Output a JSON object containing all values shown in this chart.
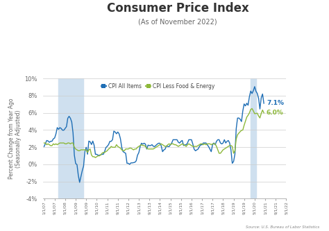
{
  "title": "Consumer Price Index",
  "subtitle": "(As of November 2022)",
  "ylabel": "Percent Change from Year Ago\n(Seasonally Adjusted)",
  "source": "Source: U.S. Bureau of Labor Statistics",
  "ylim": [
    -4,
    10
  ],
  "yticks": [
    -4,
    -2,
    0,
    2,
    4,
    6,
    8,
    10
  ],
  "ytick_labels": [
    "-4%",
    "-2%",
    "0%",
    "2%",
    "4%",
    "6%",
    "8%",
    "10%"
  ],
  "color_all": "#1e6eb5",
  "color_core": "#8db83a",
  "legend_label_all": "CPI All Items",
  "legend_label_core": "CPI Less Food & Energy",
  "annotation_all": "7.1%",
  "annotation_core": "6.0%",
  "background_color": "#ffffff",
  "shading_color": "#cfe0ef",
  "recession1_start_idx": 11,
  "recession1_end_idx": 30,
  "recession2_start_idx": 157,
  "recession2_end_idx": 161,
  "cpi_all_items": [
    2.08,
    2.42,
    2.78,
    2.73,
    2.57,
    2.69,
    2.69,
    2.97,
    3.07,
    3.54,
    4.28,
    4.08,
    4.28,
    4.18,
    3.98,
    3.98,
    4.18,
    4.39,
    5.37,
    5.6,
    5.37,
    4.94,
    3.66,
    1.07,
    0.09,
    -0.03,
    -1.28,
    -2.1,
    -1.43,
    -0.74,
    -0.2,
    1.48,
    1.99,
    1.18,
    2.71,
    2.63,
    2.31,
    2.71,
    2.24,
    1.17,
    1.17,
    1.06,
    1.06,
    1.12,
    1.17,
    1.17,
    1.5,
    1.96,
    2.11,
    2.3,
    2.68,
    2.68,
    2.87,
    3.87,
    3.77,
    3.56,
    3.77,
    3.56,
    2.99,
    1.99,
    1.49,
    1.38,
    1.29,
    0.12,
    0.12,
    0.0,
    0.17,
    0.17,
    0.2,
    0.24,
    0.41,
    1.07,
    1.37,
    2.07,
    2.46,
    2.36,
    2.46,
    2.36,
    1.78,
    2.24,
    2.19,
    2.19,
    2.29,
    2.11,
    2.07,
    2.21,
    2.36,
    2.46,
    2.46,
    2.16,
    1.48,
    1.68,
    1.78,
    2.16,
    2.07,
    2.07,
    2.28,
    2.49,
    2.87,
    2.87,
    2.87,
    2.87,
    2.58,
    2.48,
    2.68,
    2.78,
    2.19,
    2.28,
    2.28,
    2.49,
    2.87,
    2.87,
    2.87,
    2.38,
    1.78,
    1.58,
    1.68,
    1.78,
    2.07,
    2.28,
    2.28,
    2.49,
    2.49,
    2.49,
    2.28,
    2.07,
    1.78,
    1.48,
    2.28,
    2.49,
    2.28,
    2.68,
    2.87,
    2.87,
    2.49,
    2.38,
    2.49,
    2.87,
    2.49,
    2.68,
    2.78,
    2.49,
    1.68,
    0.12,
    0.34,
    1.18,
    4.16,
    5.39,
    5.4,
    5.25,
    4.99,
    6.22,
    7.04,
    6.81,
    7.12,
    6.89,
    7.87,
    8.54,
    8.26,
    8.58,
    9.06,
    8.52,
    8.26,
    7.69,
    6.45,
    7.75,
    8.2,
    7.11
  ],
  "cpi_core": [
    2.49,
    2.49,
    2.29,
    2.39,
    2.28,
    2.18,
    2.18,
    2.39,
    2.29,
    2.39,
    2.29,
    2.39,
    2.49,
    2.49,
    2.49,
    2.49,
    2.39,
    2.39,
    2.49,
    2.49,
    2.39,
    2.49,
    2.49,
    1.99,
    1.79,
    1.69,
    1.59,
    1.59,
    1.69,
    1.69,
    1.69,
    1.69,
    1.69,
    1.39,
    1.69,
    1.79,
    1.09,
    0.89,
    0.89,
    0.79,
    0.89,
    0.99,
    0.99,
    1.09,
    1.29,
    1.39,
    1.39,
    1.49,
    1.59,
    1.79,
    1.89,
    2.09,
    1.99,
    1.99,
    1.99,
    2.29,
    2.09,
    1.99,
    1.89,
    1.69,
    1.59,
    1.59,
    1.79,
    1.79,
    1.79,
    1.89,
    1.89,
    1.79,
    1.69,
    1.79,
    1.79,
    1.99,
    2.09,
    2.19,
    2.29,
    2.19,
    2.19,
    2.09,
    1.89,
    1.79,
    1.79,
    1.79,
    1.79,
    1.79,
    1.89,
    1.99,
    2.09,
    2.19,
    2.29,
    2.39,
    2.29,
    2.19,
    2.09,
    2.09,
    2.29,
    2.39,
    2.29,
    2.39,
    2.39,
    2.29,
    2.29,
    2.19,
    2.09,
    2.19,
    2.29,
    2.39,
    2.29,
    2.19,
    2.09,
    2.29,
    2.39,
    2.29,
    2.19,
    2.09,
    2.09,
    2.09,
    2.09,
    2.19,
    2.29,
    2.39,
    2.39,
    2.29,
    2.39,
    2.29,
    2.39,
    2.39,
    2.39,
    2.29,
    2.39,
    2.39,
    2.39,
    2.09,
    1.69,
    1.29,
    1.29,
    1.49,
    1.69,
    1.79,
    1.89,
    1.99,
    2.09,
    2.19,
    2.19,
    2.09,
    1.29,
    1.59,
    2.96,
    3.45,
    3.64,
    3.81,
    3.96,
    4.0,
    4.55,
    5.02,
    5.5,
    5.72,
    5.99,
    6.4,
    6.5,
    6.23,
    5.91,
    5.93,
    5.96,
    5.63,
    5.41,
    5.93,
    6.33,
    6.0
  ],
  "xtick_labels": [
    "1/1/07",
    "9/1/07",
    "5/1/08",
    "1/1/09",
    "9/1/09",
    "5/1/10",
    "1/1/11",
    "9/1/11",
    "5/1/12",
    "1/1/13",
    "9/1/13",
    "5/1/14",
    "1/1/15",
    "9/1/15",
    "5/1/16",
    "1/1/17",
    "9/1/17",
    "5/1/18",
    "1/1/19",
    "9/1/19",
    "5/1/20",
    "1/1/21",
    "9/1/21",
    "5/1/22"
  ],
  "xtick_positions": [
    0,
    8,
    16,
    24,
    32,
    40,
    48,
    56,
    64,
    72,
    80,
    88,
    96,
    104,
    112,
    120,
    128,
    136,
    144,
    152,
    160,
    168,
    176,
    184
  ]
}
